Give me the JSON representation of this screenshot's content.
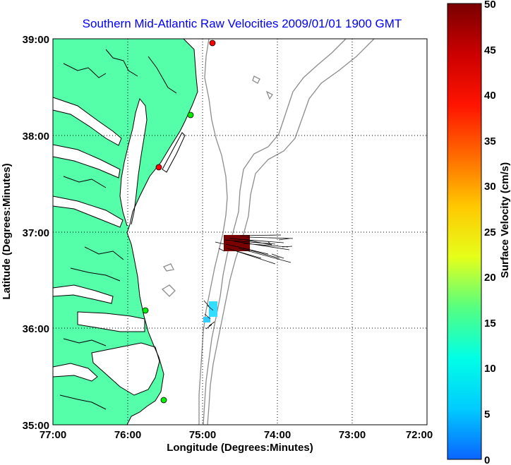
{
  "title": "Southern Mid-Atlantic Raw Velocities 2009/01/01 1900 GMT",
  "x_axis": {
    "label": "Longitude (Degrees:Minutes)",
    "ticks": [
      "77:00",
      "76:00",
      "75:00",
      "74:00",
      "73:00",
      "72:00"
    ]
  },
  "y_axis": {
    "label": "Latitude (Degrees:Minutes)",
    "ticks": [
      "39:00",
      "38:00",
      "37:00",
      "36:00",
      "35:00"
    ]
  },
  "colorbar": {
    "label": "Surface Velocity (cm/s)",
    "ticks": [
      "50",
      "45",
      "40",
      "35",
      "30",
      "25",
      "20",
      "15",
      "10",
      "5",
      "0"
    ],
    "min": 0,
    "max": 50,
    "colors": [
      "#0a64ff",
      "#00ccff",
      "#00ffe6",
      "#55ff80",
      "#e6ff1a",
      "#ffc800",
      "#ff6a00",
      "#ff1400",
      "#cc0000",
      "#7a0000"
    ]
  },
  "colors": {
    "land": "#55ffaa",
    "coastline": "#000000",
    "bathymetry": "#8c8c8c",
    "grid": "#000000",
    "station_active": "#00ee00",
    "station_inactive": "#ff0000",
    "title": "#0000ff",
    "vector_field_high": "#7a0000",
    "vector_field_low": "#33ddff"
  },
  "chart_data": {
    "type": "map",
    "lon_range": [
      -77.0,
      -72.0
    ],
    "lat_range": [
      35.0,
      39.0
    ],
    "grid": true,
    "stations": [
      {
        "lon": -74.87,
        "lat": 38.96,
        "status": "inactive"
      },
      {
        "lon": -75.16,
        "lat": 38.21,
        "status": "active"
      },
      {
        "lon": -75.53,
        "lat": 37.67,
        "status": "inactive"
      },
      {
        "lon": -75.73,
        "lat": 36.18,
        "status": "active"
      },
      {
        "lon": -75.48,
        "lat": 35.26,
        "status": "active"
      }
    ],
    "vector_regions": [
      {
        "lon_range": [
          -74.73,
          -74.38
        ],
        "lat_range": [
          36.6,
          36.77
        ],
        "speed": 50
      },
      {
        "lon_range": [
          -74.95,
          -74.83
        ],
        "lat_range": [
          36.08,
          36.22
        ],
        "speed": 12
      }
    ]
  }
}
